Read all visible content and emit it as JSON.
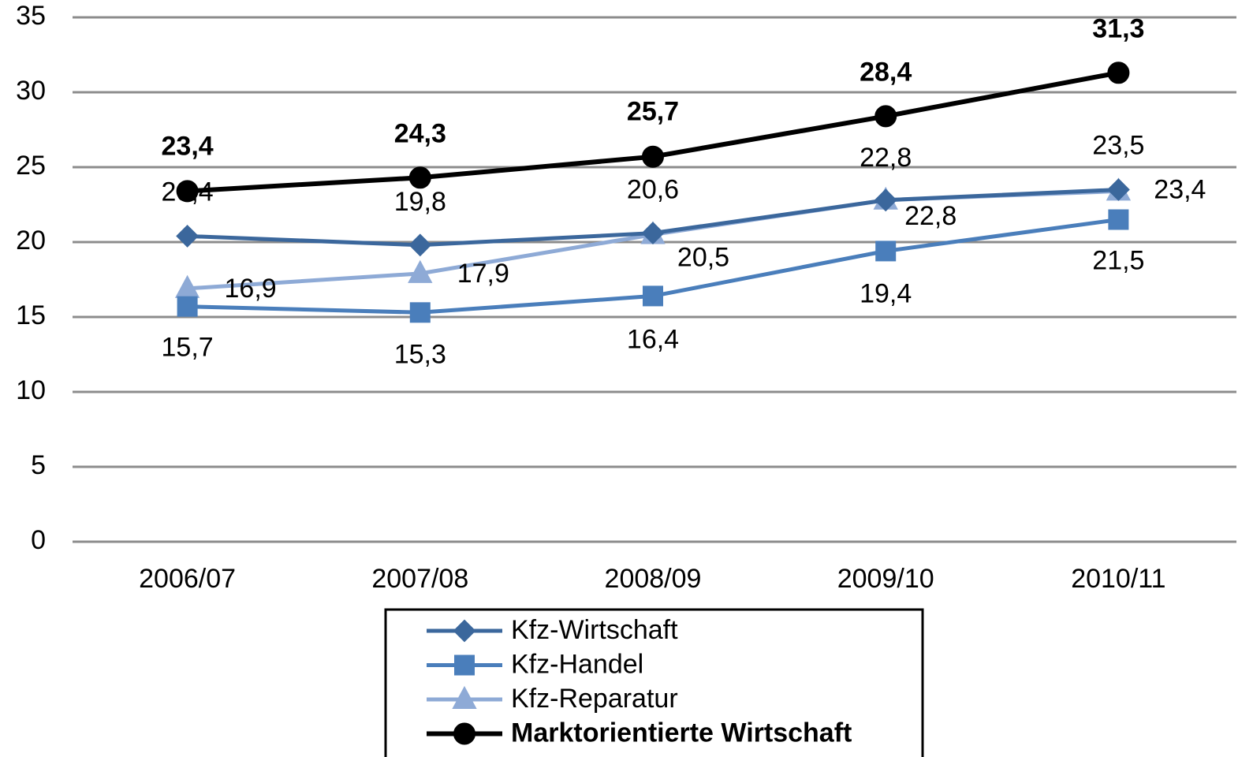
{
  "chart_data": {
    "type": "line",
    "categories": [
      "2006/07",
      "2007/08",
      "2008/09",
      "2009/10",
      "2010/11"
    ],
    "series": [
      {
        "name": "Kfz-Wirtschaft",
        "color": "#3b679c",
        "marker": "diamond",
        "values": [
          20.4,
          19.8,
          20.6,
          22.8,
          23.5
        ],
        "value_labels": [
          "20,4",
          "19,8",
          "20,6",
          "22,8",
          "23,5"
        ]
      },
      {
        "name": "Kfz-Handel",
        "color": "#4a7ebb",
        "marker": "square",
        "values": [
          15.7,
          15.3,
          16.4,
          19.4,
          21.5
        ],
        "value_labels": [
          "15,7",
          "15,3",
          "16,4",
          "19,4",
          "21,5"
        ]
      },
      {
        "name": "Kfz-Reparatur",
        "color": "#8eaad6",
        "marker": "triangle",
        "values": [
          16.9,
          17.9,
          20.5,
          22.8,
          23.4
        ],
        "value_labels": [
          "16,9",
          "17,9",
          "20,5",
          "22,8",
          "23,4"
        ]
      },
      {
        "name": "Marktorientierte Wirtschaft",
        "color": "#000000",
        "marker": "circle",
        "bold": true,
        "values": [
          23.4,
          24.3,
          25.7,
          28.4,
          31.3
        ],
        "value_labels": [
          "23,4",
          "24,3",
          "25,7",
          "28,4",
          "31,3"
        ]
      }
    ],
    "ylim": [
      0,
      35
    ],
    "yticks": [
      0,
      5,
      10,
      15,
      20,
      25,
      30,
      35
    ],
    "grid": true,
    "legend": "bottom"
  }
}
